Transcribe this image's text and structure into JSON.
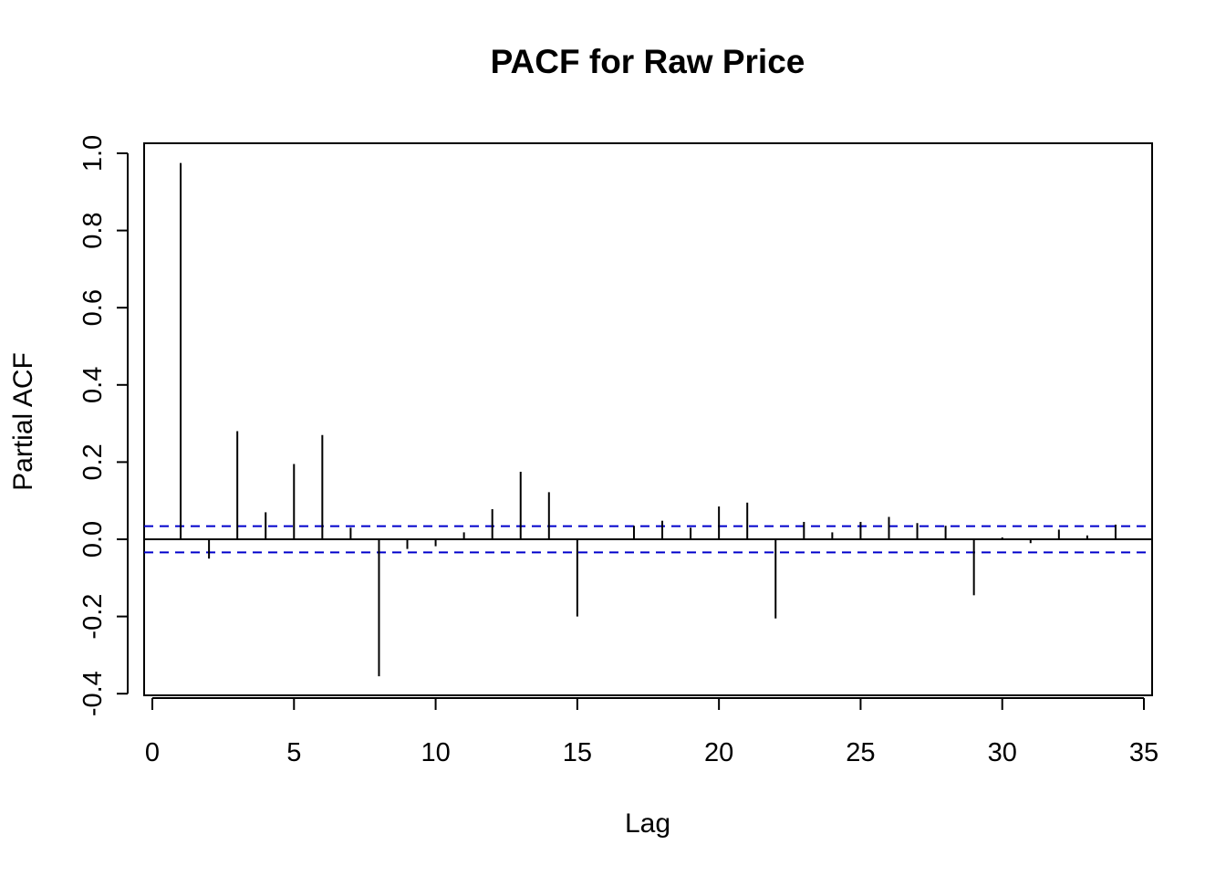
{
  "chart_data": {
    "type": "bar",
    "title": "PACF for Raw Price",
    "xlabel": "Lag",
    "ylabel": "Partial ACF",
    "xlim": [
      0,
      35
    ],
    "ylim": [
      -0.4,
      1.0
    ],
    "x_ticks": [
      0,
      5,
      10,
      15,
      20,
      25,
      30,
      35
    ],
    "x_tick_labels": [
      "0",
      "5",
      "10",
      "15",
      "20",
      "25",
      "30",
      "35"
    ],
    "y_ticks": [
      -0.4,
      -0.2,
      0.0,
      0.2,
      0.4,
      0.6,
      0.8,
      1.0
    ],
    "y_tick_labels": [
      "-0.4",
      "-0.2",
      "0.0",
      "0.2",
      "0.4",
      "0.6",
      "0.8",
      "1.0"
    ],
    "grid": false,
    "confidence_bound": 0.034,
    "confidence_color": "#0000cc",
    "line_color": "#000000",
    "series": [
      {
        "lags": [
          1,
          2,
          3,
          4,
          5,
          6,
          7,
          8,
          9,
          10,
          11,
          12,
          13,
          14,
          15,
          16,
          17,
          18,
          19,
          20,
          21,
          22,
          23,
          24,
          25,
          26,
          27,
          28,
          29,
          30,
          31,
          32,
          33,
          34
        ],
        "values": [
          0.975,
          -0.05,
          0.28,
          0.07,
          0.195,
          0.27,
          0.03,
          -0.355,
          -0.025,
          -0.018,
          0.018,
          0.078,
          0.175,
          0.122,
          -0.2,
          0.002,
          0.035,
          0.048,
          0.03,
          0.085,
          0.095,
          -0.205,
          0.045,
          0.018,
          0.045,
          0.058,
          0.042,
          0.035,
          -0.145,
          0.005,
          -0.01,
          0.025,
          0.01,
          0.038
        ]
      }
    ]
  }
}
